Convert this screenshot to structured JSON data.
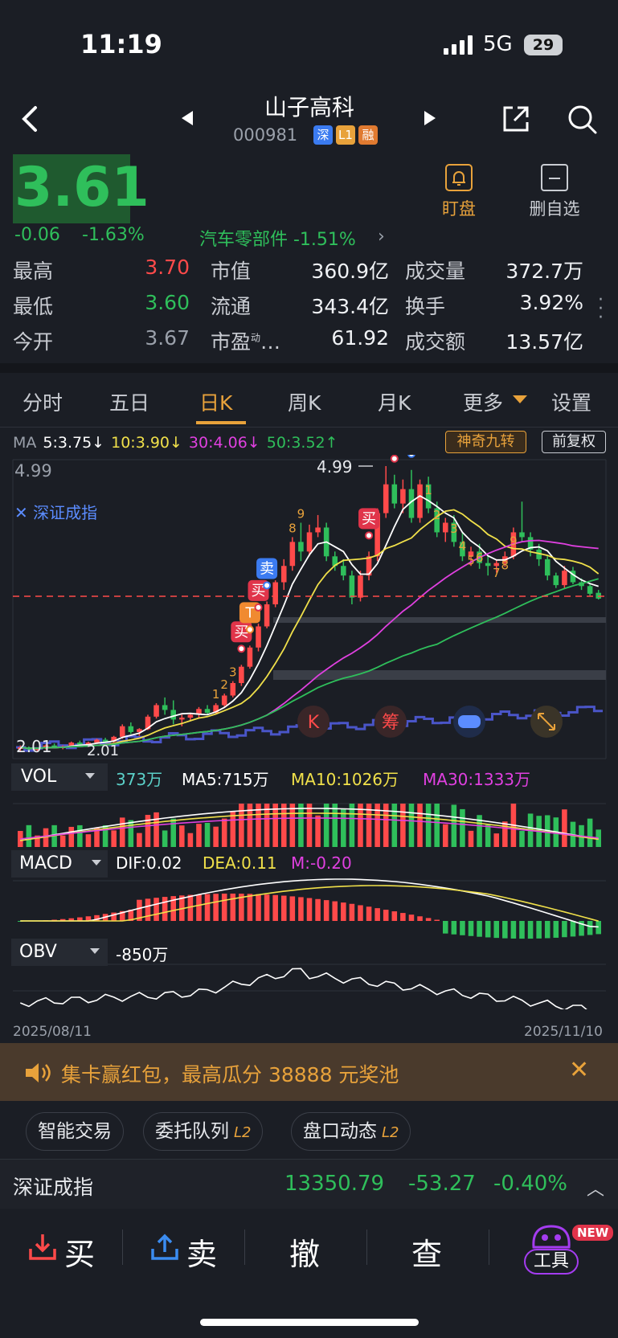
{
  "status": {
    "time": "11:19",
    "network": "5G",
    "battery": "29"
  },
  "header": {
    "name": "山子高科",
    "code": "000981",
    "tags": [
      "深",
      "L1",
      "融"
    ]
  },
  "quote": {
    "price": "3.61",
    "change": "-0.06",
    "change_pct": "-1.63%",
    "sector": "汽车零部件 -1.51%",
    "watch_label": "盯盘",
    "remove_label": "删自选"
  },
  "stats": [
    {
      "label": "最高",
      "value": "3.70",
      "color": "#ff4a4a"
    },
    {
      "label": "市值",
      "value": "360.9亿",
      "color": "#f0f2f5"
    },
    {
      "label": "成交量",
      "value": "372.7万",
      "color": "#f0f2f5"
    },
    {
      "label": "最低",
      "value": "3.60",
      "color": "#2fbf5b"
    },
    {
      "label": "流通",
      "value": "343.4亿",
      "color": "#f0f2f5"
    },
    {
      "label": "换手",
      "value": "3.92%",
      "color": "#f0f2f5"
    },
    {
      "label": "今开",
      "value": "3.67",
      "color": "#9aa0aa"
    },
    {
      "label": "市盈",
      "label_sup": "动",
      "label_suffix": "…",
      "value": "61.92",
      "color": "#f0f2f5"
    },
    {
      "label": "成交额",
      "value": "13.57亿",
      "color": "#f0f2f5"
    }
  ],
  "tabs": [
    "分时",
    "五日",
    "日K",
    "周K",
    "月K",
    "更多",
    "设置"
  ],
  "ma_legend": {
    "prefix": "MA",
    "ma5": "5:3.75↓",
    "ma10": "10:3.90↓",
    "ma30": "30:4.06↓",
    "ma50": "50:3.52↑"
  },
  "chart_controls": {
    "magic": "神奇九转",
    "adjust": "前复权"
  },
  "chart_labels": {
    "high": "4.99",
    "high_marker": "4.99",
    "low": "2.01",
    "low_marker": "2.01",
    "index_overlay": "深证成指",
    "date_start": "2025/08/11",
    "date_end": "2025/11/10",
    "buy": "买",
    "sell": "卖",
    "t": "T",
    "icon_k": "K",
    "icon_chip": "筹"
  },
  "indicators": {
    "vol": {
      "name": "VOL",
      "value": "373万",
      "ma5": "MA5:715万",
      "ma10": "MA10:1026万",
      "ma30": "MA30:1333万"
    },
    "macd": {
      "name": "MACD",
      "dif": "DIF:0.02",
      "dea": "DEA:0.11",
      "m": "M:-0.20"
    },
    "obv": {
      "name": "OBV",
      "value": "-850万"
    }
  },
  "chart_data": {
    "type": "candlestick",
    "x_range": [
      "2025/08/11",
      "2025/11/10"
    ],
    "ylim": [
      2.01,
      4.99
    ],
    "current_price": 3.61,
    "candles": [
      [
        2.05,
        2.08,
        2.02,
        2.06
      ],
      [
        2.06,
        2.07,
        2.03,
        2.04
      ],
      [
        2.04,
        2.06,
        2.01,
        2.05
      ],
      [
        2.05,
        2.09,
        2.04,
        2.08
      ],
      [
        2.08,
        2.1,
        2.05,
        2.06
      ],
      [
        2.06,
        2.08,
        2.04,
        2.07
      ],
      [
        2.07,
        2.12,
        2.06,
        2.11
      ],
      [
        2.11,
        2.13,
        2.08,
        2.09
      ],
      [
        2.09,
        2.12,
        2.07,
        2.11
      ],
      [
        2.11,
        2.15,
        2.1,
        2.14
      ],
      [
        2.14,
        2.16,
        2.1,
        2.12
      ],
      [
        2.12,
        2.18,
        2.11,
        2.17
      ],
      [
        2.17,
        2.3,
        2.15,
        2.28
      ],
      [
        2.28,
        2.32,
        2.2,
        2.22
      ],
      [
        2.22,
        2.26,
        2.18,
        2.25
      ],
      [
        2.25,
        2.4,
        2.24,
        2.38
      ],
      [
        2.38,
        2.52,
        2.36,
        2.5
      ],
      [
        2.5,
        2.58,
        2.4,
        2.45
      ],
      [
        2.45,
        2.55,
        2.3,
        2.35
      ],
      [
        2.35,
        2.4,
        2.28,
        2.37
      ],
      [
        2.37,
        2.42,
        2.33,
        2.4
      ],
      [
        2.4,
        2.48,
        2.36,
        2.46
      ],
      [
        2.46,
        2.5,
        2.4,
        2.42
      ],
      [
        2.42,
        2.52,
        2.41,
        2.5
      ],
      [
        2.5,
        2.62,
        2.48,
        2.6
      ],
      [
        2.6,
        2.75,
        2.58,
        2.73
      ],
      [
        2.73,
        2.92,
        2.7,
        2.9
      ],
      [
        2.9,
        3.12,
        2.88,
        3.1
      ],
      [
        3.1,
        3.35,
        3.06,
        3.32
      ],
      [
        3.32,
        3.58,
        3.3,
        3.55
      ],
      [
        3.55,
        3.8,
        3.52,
        3.78
      ],
      [
        3.78,
        4.02,
        3.7,
        3.95
      ],
      [
        3.95,
        4.25,
        3.9,
        4.2
      ],
      [
        4.2,
        4.4,
        4.0,
        4.1
      ],
      [
        4.1,
        4.38,
        4.05,
        4.3
      ],
      [
        4.3,
        4.48,
        4.25,
        4.35
      ],
      [
        4.35,
        4.4,
        4.0,
        4.05
      ],
      [
        4.05,
        4.1,
        3.9,
        3.95
      ],
      [
        3.95,
        4.02,
        3.8,
        3.85
      ],
      [
        3.85,
        3.9,
        3.55,
        3.62
      ],
      [
        3.62,
        3.9,
        3.58,
        3.85
      ],
      [
        3.85,
        4.1,
        3.8,
        4.05
      ],
      [
        4.05,
        4.55,
        4.0,
        4.5
      ],
      [
        4.5,
        4.99,
        4.45,
        4.8
      ],
      [
        4.8,
        4.9,
        4.55,
        4.6
      ],
      [
        4.6,
        4.85,
        4.5,
        4.75
      ],
      [
        4.75,
        4.95,
        4.4,
        4.45
      ],
      [
        4.45,
        4.85,
        4.4,
        4.8
      ],
      [
        4.8,
        4.88,
        4.5,
        4.55
      ],
      [
        4.55,
        4.62,
        4.25,
        4.3
      ],
      [
        4.3,
        4.45,
        4.2,
        4.4
      ],
      [
        4.4,
        4.48,
        4.15,
        4.2
      ],
      [
        4.2,
        4.3,
        4.0,
        4.05
      ],
      [
        4.05,
        4.15,
        3.95,
        4.1
      ],
      [
        4.1,
        4.18,
        3.92,
        3.98
      ],
      [
        3.98,
        4.05,
        3.85,
        3.95
      ],
      [
        3.95,
        4.02,
        3.88,
        3.98
      ],
      [
        3.98,
        4.1,
        3.94,
        4.05
      ],
      [
        4.05,
        4.35,
        4.02,
        4.3
      ],
      [
        4.3,
        4.62,
        4.2,
        4.25
      ],
      [
        4.25,
        4.3,
        4.05,
        4.12
      ],
      [
        4.12,
        4.18,
        3.95,
        4.02
      ],
      [
        4.02,
        4.06,
        3.8,
        3.85
      ],
      [
        3.85,
        3.88,
        3.72,
        3.75
      ],
      [
        3.75,
        3.95,
        3.72,
        3.9
      ],
      [
        3.9,
        3.94,
        3.76,
        3.78
      ],
      [
        3.78,
        3.82,
        3.7,
        3.74
      ],
      [
        3.74,
        3.76,
        3.64,
        3.66
      ],
      [
        3.67,
        3.7,
        3.6,
        3.61
      ]
    ]
  }
}
